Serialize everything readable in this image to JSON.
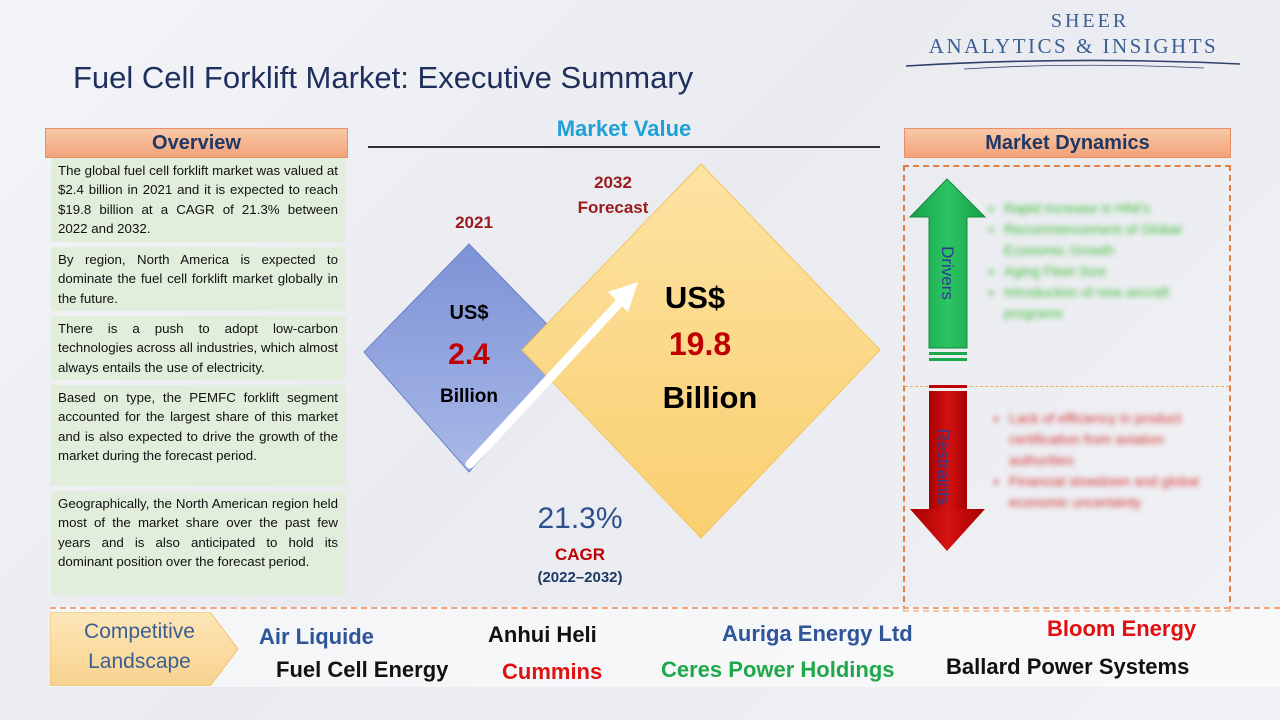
{
  "logo": {
    "line1": "SHEER",
    "line2": "ANALYTICS & INSIGHTS"
  },
  "title": "Fuel Cell Forklift Market: Executive Summary",
  "overview": {
    "header": "Overview",
    "paragraphs": [
      "The global fuel cell forklift market was valued at $2.4 billion in 2021 and it is expected to reach $19.8 billion at a CAGR of 21.3% between 2022 and 2032.",
      "By region, North America is expected to dominate the fuel cell forklift market globally in the future.",
      "There is a push to adopt low-carbon technologies across all industries, which almost always entails the use of electricity.",
      "Based on type, the PEMFC forklift segment accounted for the largest share of this market and is also expected to drive the growth of the market during the forecast period.",
      "Geographically, the North American region held most of the market share over the past few years and is also anticipated to hold its dominant position over the forecast period."
    ]
  },
  "market_value": {
    "header": "Market Value",
    "base": {
      "year": "2021",
      "currency": "US$",
      "value": "2.4",
      "unit": "Billion"
    },
    "forecast": {
      "year": "2032",
      "label": "Forecast",
      "currency": "US$",
      "value": "19.8",
      "unit": "Billion"
    },
    "cagr": {
      "value": "21.3%",
      "label": "CAGR",
      "period": "(2022–2032)"
    }
  },
  "market_dynamics": {
    "header": "Market Dynamics",
    "drivers_label": "Drivers",
    "restraints_label": "Restraints",
    "drivers": [
      "Rapid increase in HNI's",
      "Recommencement of Global Economic Growth",
      "Aging Fleet Size",
      "Introduction of new aircraft programs"
    ],
    "restraints": [
      "Lack of efficiency in product certification from aviation authorities",
      "Financial slowdown and global economic uncertainty"
    ]
  },
  "competitive_landscape": {
    "label_line1": "Competitive",
    "label_line2": "Landscape",
    "companies": [
      {
        "name": "Air Liquide",
        "color": "#2d5597"
      },
      {
        "name": "Anhui Heli",
        "color": "#111111"
      },
      {
        "name": "Auriga Energy Ltd",
        "color": "#2d5597"
      },
      {
        "name": "Bloom Energy",
        "color": "#e01010"
      },
      {
        "name": "Fuel Cell Energy",
        "color": "#111111"
      },
      {
        "name": "Cummins",
        "color": "#e01010"
      },
      {
        "name": "Ceres Power Holdings",
        "color": "#1fa84a"
      },
      {
        "name": "Ballard Power Systems",
        "color": "#111111"
      }
    ]
  },
  "colors": {
    "header_fill": "#f4aa82",
    "overview_fill": "#e1eedb",
    "blue_diamond": "#8b9fdb",
    "yellow_diamond": "#fbd785",
    "drivers_arrow": "#1aa84b",
    "restraints_arrow": "#c00000"
  },
  "icons": [
    "up-arrow-icon",
    "down-arrow-icon",
    "growth-arrow-icon"
  ]
}
